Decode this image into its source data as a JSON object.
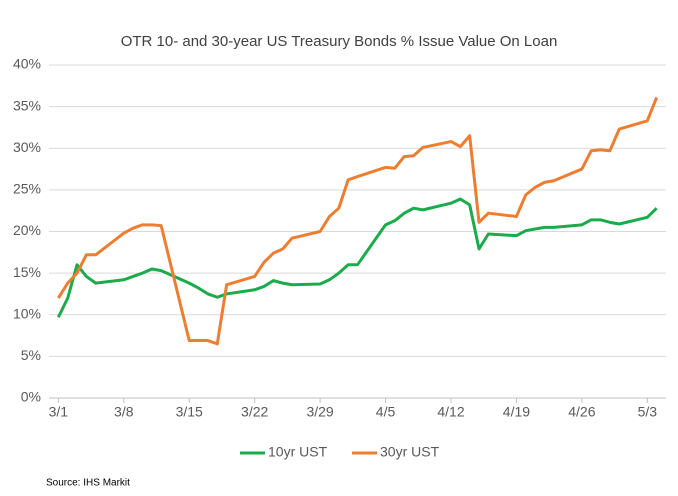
{
  "chart_data": {
    "type": "line",
    "title": "OTR 10- and 30-year US Treasury Bonds % Issue Value On Loan",
    "source": "Source: IHS Markit",
    "x": [
      0,
      1,
      2,
      3,
      4,
      7,
      8,
      9,
      10,
      11,
      14,
      15,
      16,
      17,
      18,
      21,
      22,
      23,
      24,
      25,
      28,
      29,
      30,
      31,
      32,
      35,
      36,
      37,
      38,
      39,
      42,
      43,
      44,
      45,
      46,
      49,
      50,
      51,
      52,
      53,
      56,
      57,
      58,
      59,
      60,
      63,
      64
    ],
    "series": [
      {
        "name": "10yr UST",
        "color": "#1aab4b",
        "values": [
          9.7,
          12.0,
          16.0,
          14.6,
          13.8,
          14.2,
          14.6,
          15.0,
          15.5,
          15.3,
          13.8,
          13.2,
          12.5,
          12.1,
          12.5,
          13.0,
          13.4,
          14.1,
          13.8,
          13.6,
          13.7,
          14.2,
          15.0,
          16.0,
          16.0,
          20.8,
          21.3,
          22.2,
          22.8,
          22.6,
          23.4,
          23.9,
          23.2,
          17.9,
          19.7,
          19.5,
          20.1,
          20.3,
          20.5,
          20.5,
          20.8,
          21.4,
          21.4,
          21.1,
          20.9,
          21.7,
          22.8
        ]
      },
      {
        "name": "30yr UST",
        "color": "#ed7d31",
        "values": [
          12.0,
          13.8,
          15.0,
          17.2,
          17.2,
          19.8,
          20.4,
          20.8,
          20.8,
          20.7,
          6.9,
          6.9,
          6.9,
          6.5,
          13.6,
          14.6,
          16.3,
          17.4,
          17.9,
          19.2,
          20.0,
          21.8,
          22.8,
          26.2,
          26.6,
          27.7,
          27.6,
          29.0,
          29.1,
          30.1,
          30.8,
          30.2,
          31.5,
          21.1,
          22.2,
          21.8,
          24.4,
          25.3,
          25.9,
          26.1,
          27.5,
          29.7,
          29.8,
          29.7,
          32.3,
          33.3,
          36.1
        ]
      }
    ],
    "xlim": [
      -1,
      65
    ],
    "xticks": [
      {
        "value": 0,
        "label": "3/1"
      },
      {
        "value": 7,
        "label": "3/8"
      },
      {
        "value": 14,
        "label": "3/15"
      },
      {
        "value": 21,
        "label": "3/22"
      },
      {
        "value": 28,
        "label": "3/29"
      },
      {
        "value": 35,
        "label": "4/5"
      },
      {
        "value": 42,
        "label": "4/12"
      },
      {
        "value": 49,
        "label": "4/19"
      },
      {
        "value": 56,
        "label": "4/26"
      },
      {
        "value": 63,
        "label": "5/3"
      }
    ],
    "ylim": [
      0,
      40
    ],
    "yticks": [
      {
        "value": 0,
        "label": "0%"
      },
      {
        "value": 5,
        "label": "5%"
      },
      {
        "value": 10,
        "label": "10%"
      },
      {
        "value": 15,
        "label": "15%"
      },
      {
        "value": 20,
        "label": "20%"
      },
      {
        "value": 25,
        "label": "25%"
      },
      {
        "value": 30,
        "label": "30%"
      },
      {
        "value": 35,
        "label": "35%"
      },
      {
        "value": 40,
        "label": "40%"
      }
    ],
    "grid": true,
    "legend": "bottom"
  }
}
